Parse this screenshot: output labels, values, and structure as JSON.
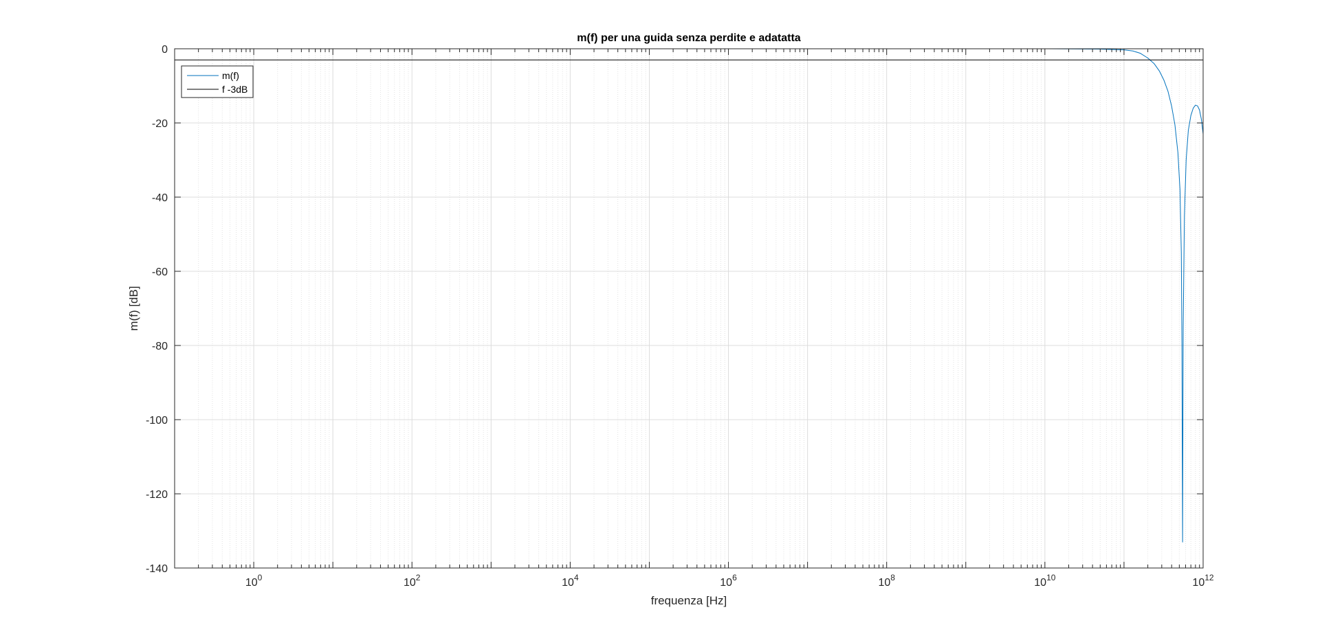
{
  "chart_data": {
    "type": "line",
    "title": "m(f) per una guida senza perdite e adatatta",
    "xlabel": "frequenza [Hz]",
    "ylabel": "m(f) [dB]",
    "x_scale": "log",
    "xlim": [
      0.1,
      1000000000000.0
    ],
    "ylim": [
      -140,
      0
    ],
    "x_tick_values": [
      1,
      100,
      10000,
      1000000,
      100000000,
      10000000000,
      1000000000000
    ],
    "x_tick_labels": [
      {
        "base": "10",
        "exp": "0"
      },
      {
        "base": "10",
        "exp": "2"
      },
      {
        "base": "10",
        "exp": "4"
      },
      {
        "base": "10",
        "exp": "6"
      },
      {
        "base": "10",
        "exp": "8"
      },
      {
        "base": "10",
        "exp": "10"
      },
      {
        "base": "10",
        "exp": "12"
      }
    ],
    "y_ticks": [
      0,
      -20,
      -40,
      -60,
      -80,
      -100,
      -120,
      -140
    ],
    "grid": true,
    "legend_position": "top-left",
    "series": [
      {
        "name": "m(f)",
        "color": "#0072BD",
        "x": [
          0.1,
          1,
          100,
          10000.0,
          1000000.0,
          100000000.0,
          10000000000.0,
          50000000000.0,
          100000000000.0,
          130000000000.0,
          160000000000.0,
          200000000000.0,
          240000000000.0,
          280000000000.0,
          320000000000.0,
          360000000000.0,
          400000000000.0,
          440000000000.0,
          480000000000.0,
          510000000000.0,
          530000000000.0,
          540000000000.0,
          550000000000.0,
          560000000000.0,
          580000000000.0,
          610000000000.0,
          650000000000.0,
          700000000000.0,
          750000000000.0,
          800000000000.0,
          850000000000.0,
          900000000000.0,
          950000000000.0,
          1000000000000.0
        ],
        "y": [
          0,
          0,
          0,
          0,
          0,
          0,
          0,
          -0.1,
          -0.3,
          -0.6,
          -1.2,
          -2.5,
          -4,
          -6,
          -8.5,
          -11.5,
          -15.5,
          -20.5,
          -28,
          -38,
          -55,
          -80,
          -133,
          -75,
          -45,
          -30,
          -22,
          -18,
          -16,
          -15.2,
          -15.4,
          -16.5,
          -19,
          -23
        ]
      },
      {
        "name": "f -3dB",
        "color": "#000000",
        "x": [
          0.1,
          1000000000000.0
        ],
        "y": [
          -3,
          -3
        ]
      }
    ]
  }
}
